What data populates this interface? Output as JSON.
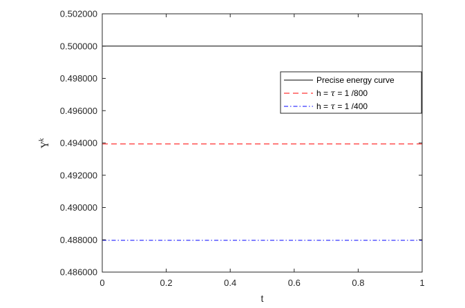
{
  "chart_data": {
    "type": "line",
    "xlabel": "t",
    "ylabel": "Υ",
    "ylabel_superscript": "k",
    "xlim": [
      0,
      1
    ],
    "ylim": [
      0.486,
      0.502
    ],
    "x_ticks": [
      0,
      0.2,
      0.4,
      0.6,
      0.8,
      1
    ],
    "x_tick_labels": [
      "0",
      "0.2",
      "0.4",
      "0.6",
      "0.8",
      "1"
    ],
    "y_ticks": [
      0.486,
      0.488,
      0.49,
      0.492,
      0.494,
      0.496,
      0.498,
      0.5,
      0.502
    ],
    "y_tick_labels": [
      "0.486000",
      "0.488000",
      "0.490000",
      "0.492000",
      "0.494000",
      "0.496000",
      "0.498000",
      "0.500000",
      "0.502000"
    ],
    "grid": false,
    "legend_position": "top-right",
    "series": [
      {
        "name": "Precise energy curve",
        "legend_prefix": "",
        "legend_suffix": "",
        "color": "#000000",
        "dash": "solid",
        "x": [
          0,
          1
        ],
        "y": [
          0.5,
          0.5
        ]
      },
      {
        "name": "h = τ = 1 /800",
        "legend_prefix": "h = ",
        "legend_suffix": " = 1 /800",
        "color": "#ff0000",
        "dash": "dashed",
        "x": [
          0,
          1
        ],
        "y": [
          0.49394,
          0.49394
        ]
      },
      {
        "name": "h = τ = 1 /400",
        "legend_prefix": "h = ",
        "legend_suffix": " = 1 /400",
        "color": "#0000ff",
        "dash": "dashdot",
        "x": [
          0,
          1
        ],
        "y": [
          0.48797,
          0.48797
        ]
      }
    ],
    "legend_symbol": "τ"
  }
}
